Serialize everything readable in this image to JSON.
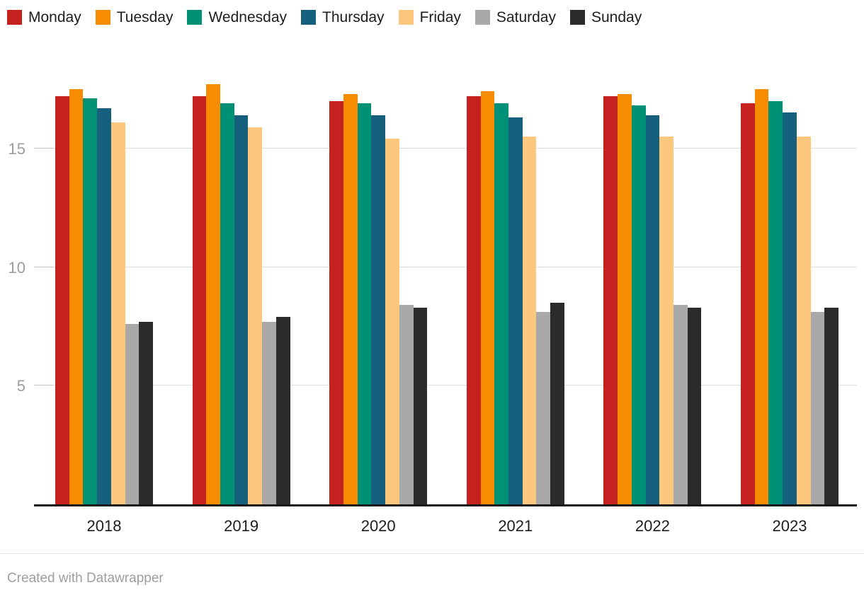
{
  "chart_data": {
    "type": "bar",
    "title": "",
    "categories": [
      "2018",
      "2019",
      "2020",
      "2021",
      "2022",
      "2023"
    ],
    "series": [
      {
        "name": "Monday",
        "color": "#c4211f",
        "values": [
          17.2,
          17.2,
          17.0,
          17.2,
          17.2,
          16.9
        ]
      },
      {
        "name": "Tuesday",
        "color": "#f88c00",
        "values": [
          17.5,
          17.7,
          17.3,
          17.4,
          17.3,
          17.5
        ]
      },
      {
        "name": "Wednesday",
        "color": "#009076",
        "values": [
          17.1,
          16.9,
          16.9,
          16.9,
          16.8,
          17.0
        ]
      },
      {
        "name": "Thursday",
        "color": "#17607d",
        "values": [
          16.7,
          16.4,
          16.4,
          16.3,
          16.4,
          16.5
        ]
      },
      {
        "name": "Friday",
        "color": "#fdc77e",
        "values": [
          16.1,
          15.9,
          15.4,
          15.5,
          15.5,
          15.5
        ]
      },
      {
        "name": "Saturday",
        "color": "#a9a9a9",
        "values": [
          7.6,
          7.7,
          8.4,
          8.1,
          8.4,
          8.1
        ]
      },
      {
        "name": "Sunday",
        "color": "#2b2b2b",
        "values": [
          7.7,
          7.9,
          8.3,
          8.5,
          8.3,
          8.3
        ]
      }
    ],
    "xlabel": "",
    "ylabel": "",
    "yticks": [
      5,
      10,
      15
    ],
    "ylim": [
      0,
      20
    ],
    "grid": "horizontal",
    "legend_position": "top"
  },
  "colors": {
    "axis_line": "#181818",
    "gridline": "#dedede",
    "y_tick_label": "#9d9d9d",
    "x_tick_label": "#1d1d1d",
    "legend_label": "#1d1d1d",
    "footer_text": "#9e9e9e"
  },
  "footer": {
    "credit": "Created with Datawrapper"
  }
}
